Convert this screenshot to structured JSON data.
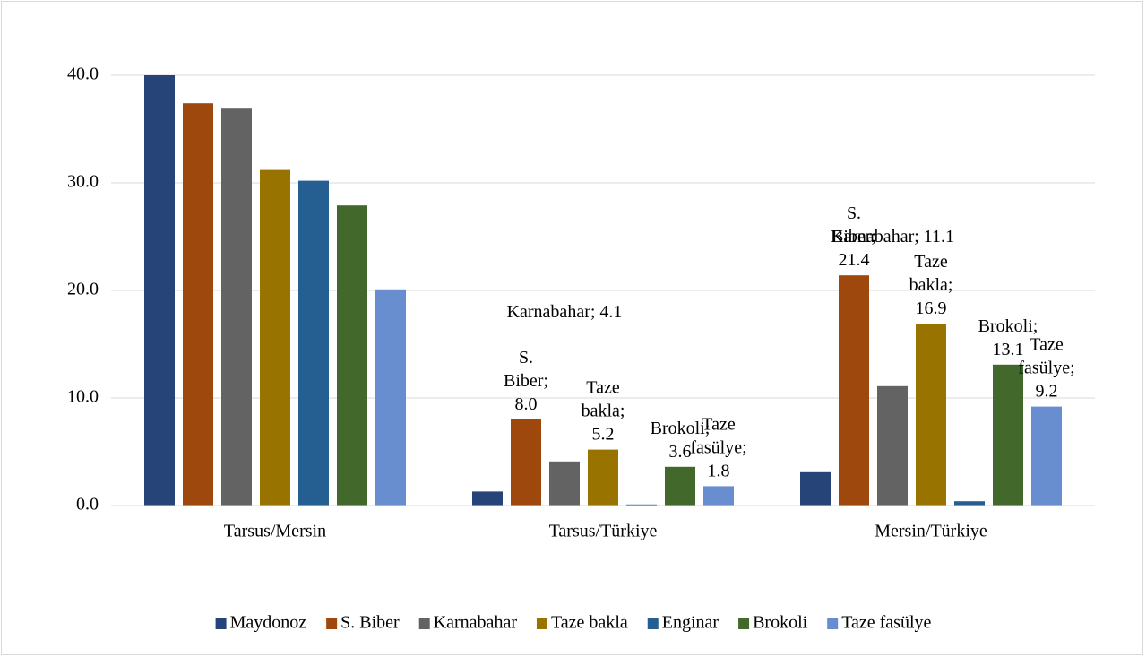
{
  "chart_data": {
    "type": "bar",
    "categories": [
      "Tarsus/Mersin",
      "Tarsus/Türkiye",
      "Mersin/Türkiye"
    ],
    "series": [
      {
        "name": "Maydonoz",
        "color": "#264478",
        "values": [
          40.0,
          1.3,
          3.1
        ],
        "value_labels": [
          null,
          null,
          null
        ]
      },
      {
        "name": "S. Biber",
        "color": "#9e480e",
        "values": [
          37.4,
          8.0,
          21.4
        ],
        "value_labels": [
          null,
          "S. Biber; 8.0",
          "S. Biber; 21.4"
        ]
      },
      {
        "name": "Karnabahar",
        "color": "#636363",
        "values": [
          36.9,
          4.1,
          11.1
        ],
        "value_labels": [
          null,
          "Karnabahar; 4.1",
          "Karnabahar; 11.1"
        ]
      },
      {
        "name": "Taze bakla",
        "color": "#997300",
        "values": [
          31.2,
          5.2,
          16.9
        ],
        "value_labels": [
          null,
          "Taze bakla; 5.2",
          "Taze bakla; 16.9"
        ]
      },
      {
        "name": "Enginar",
        "color": "#255e91",
        "values": [
          30.2,
          0.1,
          0.4
        ],
        "value_labels": [
          null,
          null,
          null
        ]
      },
      {
        "name": "Brokoli",
        "color": "#43682b",
        "values": [
          27.9,
          3.6,
          13.1
        ],
        "value_labels": [
          null,
          "Brokoli; 3.6",
          "Brokoli; 13.1"
        ]
      },
      {
        "name": "Taze fasülye",
        "color": "#698ed0",
        "values": [
          20.1,
          1.8,
          9.2
        ],
        "value_labels": [
          null,
          "Taze fasülye; 1.8",
          "Taze fasülye; 9.2"
        ]
      }
    ],
    "ylim": [
      0,
      40
    ],
    "yticks": [
      {
        "value": 0,
        "label": "0.0"
      },
      {
        "value": 10,
        "label": "10.0"
      },
      {
        "value": 20,
        "label": "20.0"
      },
      {
        "value": 30,
        "label": "30.0"
      },
      {
        "value": 40,
        "label": "40.0"
      }
    ],
    "grid": true,
    "legend": "bottom"
  }
}
